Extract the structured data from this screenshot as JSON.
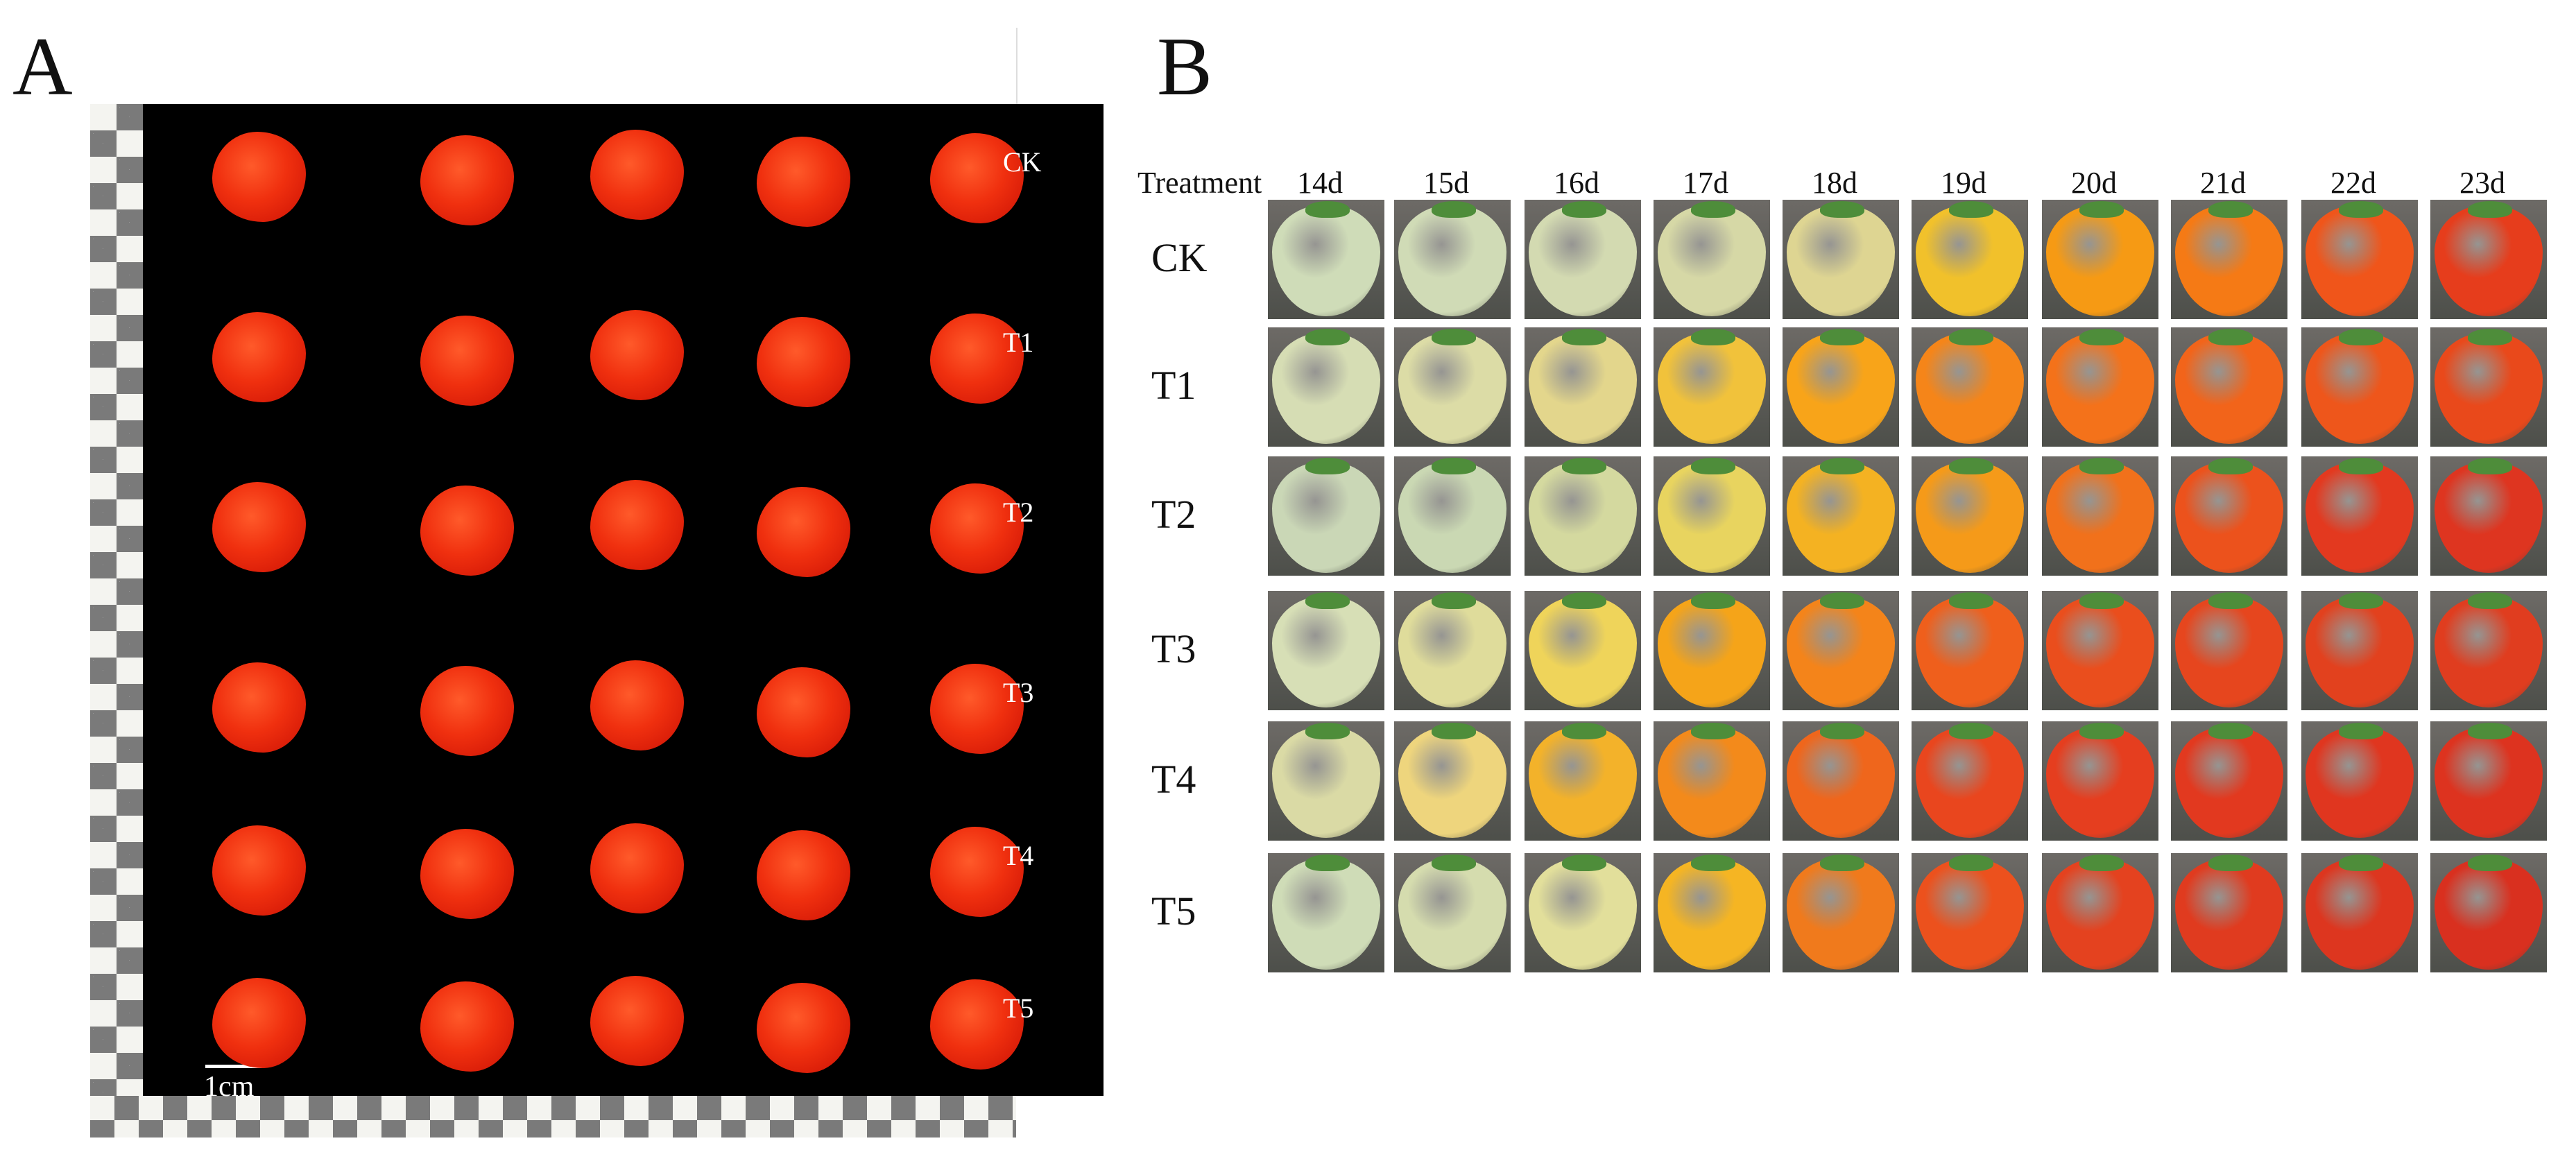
{
  "panel_a": {
    "letter": "A",
    "row_labels": [
      "CK",
      "T1",
      "T2",
      "T3",
      "T4",
      "T5"
    ],
    "scale_label": "1cm"
  },
  "panel_b": {
    "letter": "B",
    "header": [
      "Treatment",
      "14d",
      "15d",
      "16d",
      "17d",
      "18d",
      "19d",
      "20d",
      "21d",
      "22d",
      "23d"
    ],
    "row_labels": [
      "CK",
      "T1",
      "T2",
      "T3",
      "T4",
      "T5"
    ],
    "fruit_colors": [
      [
        "#cfdcb8",
        "#d0dbb6",
        "#d3dab1",
        "#d6d8a6",
        "#ded592",
        "#f1c12b",
        "#f69a14",
        "#f57a15",
        "#f0551a",
        "#e63d1c"
      ],
      [
        "#d6ddb4",
        "#dcdca6",
        "#e3d68c",
        "#f1c23b",
        "#f8a419",
        "#f58519",
        "#f4721a",
        "#f2641a",
        "#ee561b",
        "#e9491b"
      ],
      [
        "#cad7b6",
        "#cad8b3",
        "#d4d99f",
        "#e8d45f",
        "#f4b222",
        "#f59a19",
        "#f1711b",
        "#ec521c",
        "#e3391f",
        "#de3520"
      ],
      [
        "#d7dfb6",
        "#dfdc9b",
        "#efd45a",
        "#f5a419",
        "#f4841a",
        "#ef5f1c",
        "#ea4e1d",
        "#e6461e",
        "#e2411e",
        "#e03d1f"
      ],
      [
        "#dadaa5",
        "#eed57d",
        "#f3b22a",
        "#f38a1b",
        "#ef661c",
        "#e9461e",
        "#e53e1f",
        "#e2391f",
        "#e0361f",
        "#dd331f"
      ],
      [
        "#cfdcb7",
        "#d5dcae",
        "#e2df9b",
        "#f5b523",
        "#f07a1c",
        "#ec511d",
        "#e4421f",
        "#e03b1f",
        "#dd361f",
        "#d9301f"
      ]
    ]
  }
}
